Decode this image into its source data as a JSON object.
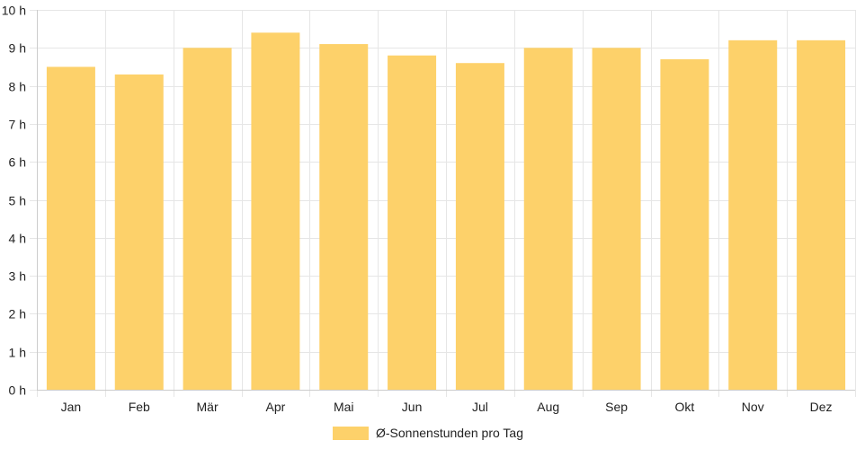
{
  "chart_data": {
    "type": "bar",
    "categories": [
      "Jan",
      "Feb",
      "Mär",
      "Apr",
      "Mai",
      "Jun",
      "Jul",
      "Aug",
      "Sep",
      "Okt",
      "Nov",
      "Dez"
    ],
    "series": [
      {
        "name": "Ø-Sonnenstunden pro Tag",
        "values": [
          8.5,
          8.3,
          9.0,
          9.4,
          9.1,
          8.8,
          8.6,
          9.0,
          9.0,
          8.7,
          9.2,
          9.2
        ],
        "color": "#fdd16a"
      }
    ],
    "ylim": [
      0,
      10
    ],
    "yticks": [
      "0 h",
      "1 h",
      "2 h",
      "3 h",
      "4 h",
      "5 h",
      "6 h",
      "7 h",
      "8 h",
      "9 h",
      "10 h"
    ],
    "grid": true,
    "legend_position": "bottom",
    "grid_color": "#e6e6e6",
    "axis_color": "#cccccc"
  }
}
